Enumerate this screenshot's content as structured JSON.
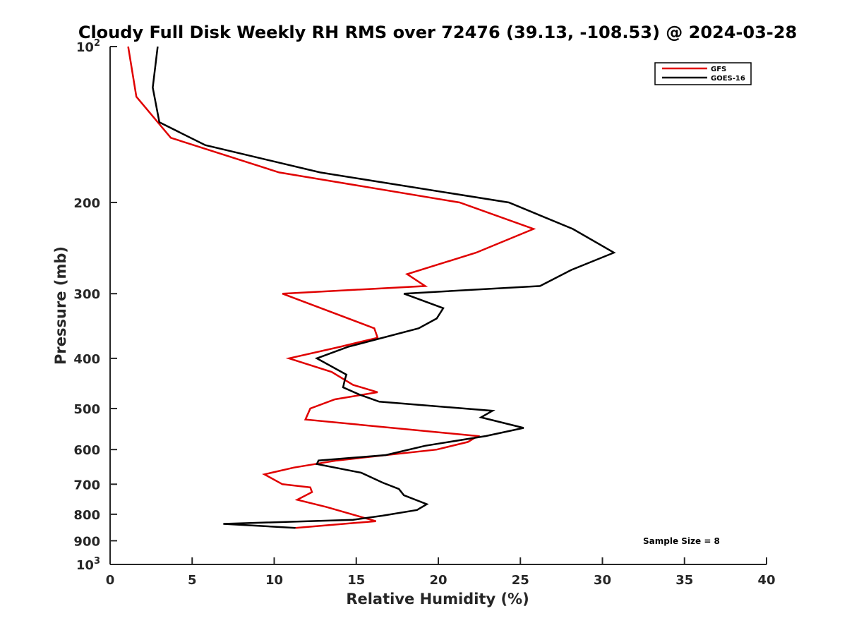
{
  "chart_data": {
    "type": "line",
    "title": "Cloudy Full Disk Weekly RH RMS over 72476 (39.13, -108.53) @ 2024-03-28",
    "xlabel": "Relative Humidity (%)",
    "ylabel": "Pressure (mb)",
    "xlim": [
      0,
      40
    ],
    "ylim": [
      100,
      1000
    ],
    "y_scale": "log",
    "y_reversed": true,
    "grid": false,
    "legend_position": "top-right",
    "x_ticks": [
      {
        "value": 0,
        "label": "0"
      },
      {
        "value": 5,
        "label": "5"
      },
      {
        "value": 10,
        "label": "10"
      },
      {
        "value": 15,
        "label": "15"
      },
      {
        "value": 20,
        "label": "20"
      },
      {
        "value": 25,
        "label": "25"
      },
      {
        "value": 30,
        "label": "30"
      },
      {
        "value": 35,
        "label": "35"
      },
      {
        "value": 40,
        "label": "40"
      }
    ],
    "y_ticks": [
      {
        "value": 100,
        "base": "10",
        "exp": "2"
      },
      {
        "value": 200,
        "label": "200"
      },
      {
        "value": 300,
        "label": "300"
      },
      {
        "value": 400,
        "label": "400"
      },
      {
        "value": 500,
        "label": "500"
      },
      {
        "value": 600,
        "label": "600"
      },
      {
        "value": 700,
        "label": "700"
      },
      {
        "value": 800,
        "label": "800"
      },
      {
        "value": 900,
        "label": "900"
      },
      {
        "value": 1000,
        "base": "10",
        "exp": "3"
      }
    ],
    "series": [
      {
        "name": "GFS",
        "color": "#e00000",
        "points": [
          [
            1.1,
            100
          ],
          [
            1.6,
            125
          ],
          [
            3.7,
            150
          ],
          [
            10.3,
            175
          ],
          [
            21.3,
            200
          ],
          [
            25.8,
            225
          ],
          [
            22.3,
            250
          ],
          [
            18.1,
            275
          ],
          [
            19.2,
            290
          ],
          [
            10.5,
            300
          ],
          [
            16.1,
            350
          ],
          [
            16.3,
            365
          ],
          [
            14.0,
            380
          ],
          [
            10.9,
            400
          ],
          [
            13.5,
            425
          ],
          [
            14.8,
            450
          ],
          [
            16.3,
            465
          ],
          [
            13.7,
            480
          ],
          [
            12.2,
            500
          ],
          [
            11.9,
            525
          ],
          [
            22.4,
            565
          ],
          [
            21.8,
            580
          ],
          [
            19.9,
            600
          ],
          [
            13.8,
            630
          ],
          [
            11.2,
            650
          ],
          [
            9.4,
            670
          ],
          [
            10.5,
            700
          ],
          [
            12.2,
            710
          ],
          [
            12.3,
            725
          ],
          [
            11.4,
            750
          ],
          [
            13.2,
            775
          ],
          [
            16.2,
            825
          ],
          [
            11.3,
            850
          ]
        ]
      },
      {
        "name": "GOES-16",
        "color": "#000000",
        "points": [
          [
            2.9,
            100
          ],
          [
            2.6,
            120
          ],
          [
            3.0,
            140
          ],
          [
            5.8,
            155
          ],
          [
            12.8,
            175
          ],
          [
            24.3,
            200
          ],
          [
            28.2,
            225
          ],
          [
            30.7,
            250
          ],
          [
            28.1,
            270
          ],
          [
            26.2,
            290
          ],
          [
            17.9,
            300
          ],
          [
            20.3,
            320
          ],
          [
            19.9,
            335
          ],
          [
            18.8,
            350
          ],
          [
            14.5,
            380
          ],
          [
            12.6,
            400
          ],
          [
            14.4,
            430
          ],
          [
            14.3,
            440
          ],
          [
            14.2,
            455
          ],
          [
            15.2,
            470
          ],
          [
            16.4,
            485
          ],
          [
            23.3,
            505
          ],
          [
            22.6,
            520
          ],
          [
            25.2,
            545
          ],
          [
            22.9,
            565
          ],
          [
            19.2,
            590
          ],
          [
            16.8,
            615
          ],
          [
            12.7,
            630
          ],
          [
            12.6,
            640
          ],
          [
            15.3,
            665
          ],
          [
            16.6,
            695
          ],
          [
            17.6,
            715
          ],
          [
            17.9,
            735
          ],
          [
            19.3,
            765
          ],
          [
            18.7,
            785
          ],
          [
            16.6,
            805
          ],
          [
            14.8,
            820
          ],
          [
            6.9,
            835
          ],
          [
            11.3,
            850
          ]
        ]
      }
    ],
    "annotation": "Sample Size = 8"
  }
}
